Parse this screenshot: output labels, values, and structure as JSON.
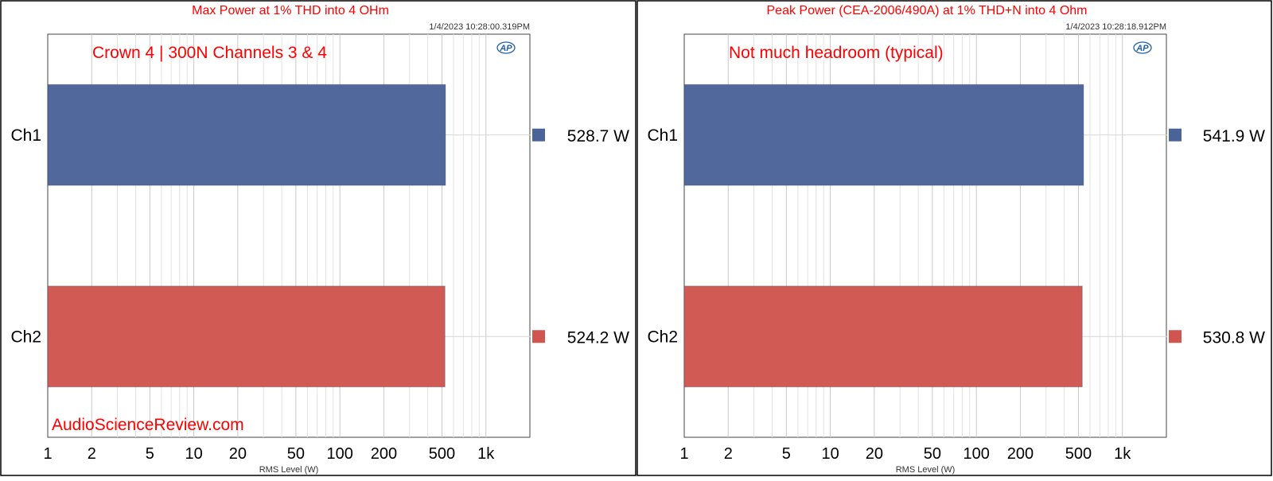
{
  "watermark": "AudioScienceReview.com",
  "logo_text": "AP",
  "chart_data": [
    {
      "type": "bar",
      "orientation": "horizontal",
      "title": "Max Power at 1% THD into 4 OHm",
      "timestamp": "1/4/2023 10:28:00.319PM",
      "annotation": "Crown 4 | 300N Channels 3 & 4",
      "xlabel": "RMS Level (W)",
      "xscale": "log",
      "xlim": [
        1,
        2000
      ],
      "xticks": [
        1,
        2,
        5,
        10,
        20,
        50,
        100,
        200,
        500,
        1000
      ],
      "xtick_labels": [
        "1",
        "2",
        "5",
        "10",
        "20",
        "50",
        "100",
        "200",
        "500",
        "1k"
      ],
      "grid": true,
      "categories": [
        "Ch1",
        "Ch2"
      ],
      "values": [
        528.7,
        524.2
      ],
      "value_labels": [
        "528.7  W",
        "524.2  W"
      ],
      "colors": [
        "#4a6399",
        "#d0554f"
      ],
      "show_watermark": true
    },
    {
      "type": "bar",
      "orientation": "horizontal",
      "title": "Peak Power (CEA-2006/490A) at 1% THD+N into 4 Ohm",
      "timestamp": "1/4/2023 10:28:18.912PM",
      "annotation": "Not much headroom (typical)",
      "xlabel": "RMS Level (W)",
      "xscale": "log",
      "xlim": [
        1,
        2000
      ],
      "xticks": [
        1,
        2,
        5,
        10,
        20,
        50,
        100,
        200,
        500,
        1000
      ],
      "xtick_labels": [
        "1",
        "2",
        "5",
        "10",
        "20",
        "50",
        "100",
        "200",
        "500",
        "1k"
      ],
      "grid": true,
      "categories": [
        "Ch1",
        "Ch2"
      ],
      "values": [
        541.9,
        530.8
      ],
      "value_labels": [
        "541.9  W",
        "530.8  W"
      ],
      "colors": [
        "#4a6399",
        "#d0554f"
      ],
      "show_watermark": false
    }
  ]
}
